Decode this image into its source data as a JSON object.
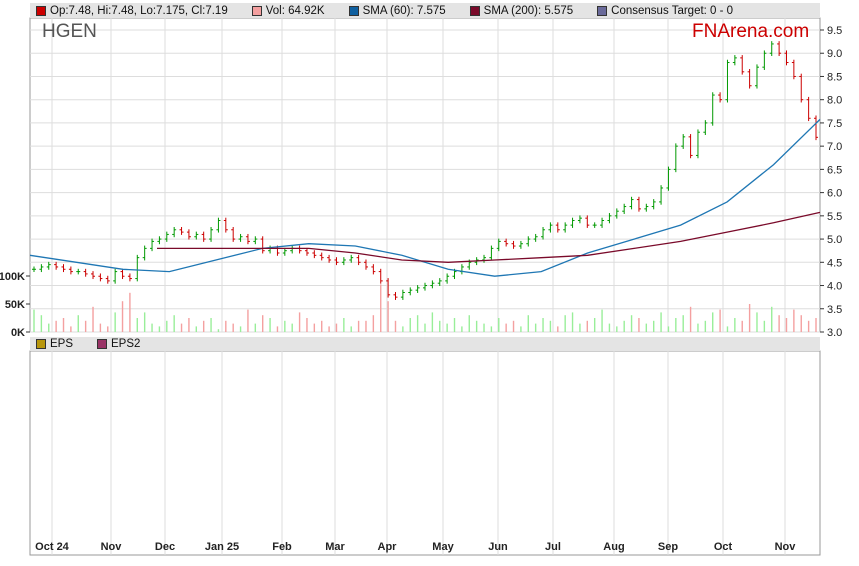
{
  "legend": {
    "ohlc": "Op:7.48, Hi:7.48, Lo:7.175, Cl:7.19",
    "vol": "Vol: 64.92K",
    "sma60": "SMA (60): 7.575",
    "sma200": "SMA (200): 5.575",
    "target": "Consensus Target: 0 - 0"
  },
  "legend2": {
    "eps": "EPS",
    "eps2": "EPS2"
  },
  "ticker": "HGEN",
  "brand": "FNArena.com",
  "colors": {
    "up": "#009900",
    "down": "#cc0000",
    "sma60": "#1f77b4",
    "sma200": "#7a0a2a",
    "volUp": "#99ee99",
    "volDown": "#f4a0a0",
    "eps": "#b8960c",
    "eps2": "#993366"
  },
  "chart_data": {
    "type": "candlestick",
    "x_ticks": [
      "Oct 24",
      "Nov",
      "Dec",
      "Jan 25",
      "Feb",
      "Mar",
      "Apr",
      "May",
      "Jun",
      "Jul",
      "Aug",
      "Sep",
      "Oct",
      "Nov"
    ],
    "y_ticks": [
      "9.5",
      "9.0",
      "8.5",
      "8.0",
      "7.5",
      "7.0",
      "6.5",
      "6.0",
      "5.5",
      "5.0",
      "4.5",
      "4.0",
      "3.5",
      "3.0"
    ],
    "vol_ticks": [
      "100K",
      "50K",
      "0K"
    ],
    "ylim": [
      3.0,
      9.5
    ],
    "closes": [
      4.35,
      4.4,
      4.45,
      4.4,
      4.35,
      4.3,
      4.3,
      4.25,
      4.2,
      4.15,
      4.1,
      4.3,
      4.2,
      4.15,
      4.6,
      4.8,
      4.95,
      5.0,
      5.1,
      5.2,
      5.15,
      5.05,
      5.1,
      5.0,
      5.2,
      5.4,
      5.2,
      5.0,
      5.05,
      4.95,
      5.0,
      4.75,
      4.8,
      4.7,
      4.75,
      4.8,
      4.75,
      4.7,
      4.65,
      4.6,
      4.55,
      4.5,
      4.55,
      4.6,
      4.5,
      4.4,
      4.3,
      4.1,
      3.8,
      3.75,
      3.85,
      3.9,
      3.95,
      4.0,
      4.05,
      4.1,
      4.2,
      4.3,
      4.4,
      4.5,
      4.55,
      4.6,
      4.8,
      4.95,
      4.9,
      4.85,
      4.9,
      5.0,
      5.05,
      5.2,
      5.3,
      5.2,
      5.3,
      5.4,
      5.45,
      5.3,
      5.3,
      5.4,
      5.5,
      5.6,
      5.7,
      5.85,
      5.65,
      5.7,
      5.8,
      6.1,
      6.5,
      7.0,
      7.2,
      6.8,
      7.3,
      7.5,
      8.1,
      8.0,
      8.8,
      8.9,
      8.6,
      8.3,
      8.7,
      9.0,
      9.2,
      9.0,
      8.8,
      8.5,
      8.0,
      7.6,
      7.19
    ],
    "volumes": [
      40,
      30,
      15,
      20,
      25,
      10,
      30,
      20,
      45,
      15,
      10,
      35,
      55,
      70,
      25,
      35,
      15,
      10,
      20,
      30,
      15,
      25,
      10,
      20,
      25,
      5,
      20,
      15,
      10,
      40,
      15,
      30,
      25,
      10,
      20,
      15,
      35,
      25,
      15,
      20,
      10,
      15,
      25,
      10,
      20,
      20,
      30,
      85,
      55,
      20,
      10,
      25,
      30,
      15,
      35,
      20,
      15,
      25,
      10,
      30,
      20,
      15,
      10,
      25,
      15,
      20,
      10,
      30,
      15,
      25,
      20,
      10,
      30,
      35,
      15,
      20,
      25,
      40,
      15,
      10,
      20,
      30,
      25,
      15,
      20,
      35,
      10,
      25,
      30,
      45,
      15,
      20,
      35,
      40,
      10,
      25,
      20,
      50,
      35,
      20,
      45,
      30,
      25,
      40,
      30,
      20,
      25
    ],
    "sma60": [
      4.65,
      4.5,
      4.35,
      4.3,
      4.55,
      4.8,
      4.9,
      4.85,
      4.65,
      4.35,
      4.2,
      4.3,
      4.7,
      5.0,
      5.3,
      5.8,
      6.6,
      7.575
    ],
    "sma200": [
      null,
      null,
      null,
      4.8,
      4.8,
      4.8,
      4.8,
      4.7,
      4.55,
      4.5,
      4.55,
      4.6,
      4.65,
      4.8,
      4.95,
      5.15,
      5.35,
      5.575
    ]
  }
}
